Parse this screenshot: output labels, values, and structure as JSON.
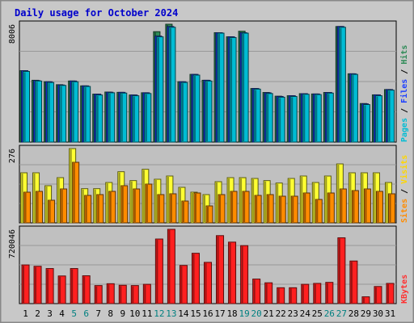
{
  "chart_data": {
    "type": "bar",
    "title": "Daily usage for October 2024",
    "categories": [
      "1",
      "2",
      "3",
      "4",
      "5",
      "6",
      "7",
      "8",
      "9",
      "10",
      "11",
      "12",
      "13",
      "14",
      "15",
      "16",
      "17",
      "18",
      "19",
      "20",
      "21",
      "22",
      "23",
      "24",
      "25",
      "26",
      "27",
      "28",
      "29",
      "30",
      "31"
    ],
    "weekend_days": [
      "5",
      "6",
      "12",
      "13",
      "19",
      "20",
      "26",
      "27"
    ],
    "panels": [
      {
        "id": "hits",
        "max_label": "8006",
        "ylim": [
          0,
          8006
        ],
        "legend": [
          "Pages",
          "Files",
          "Hits"
        ],
        "legend_colors": [
          "#00bcd4",
          "#1e40ff",
          "#2e8b57"
        ],
        "series": [
          {
            "name": "Hits",
            "color": "#2e8b57",
            "values": [
              4850,
              4200,
              4100,
              3900,
              4150,
              3820,
              3260,
              3400,
              3380,
              3200,
              3350,
              7500,
              8006,
              4100,
              4600,
              4200,
              7430,
              7150,
              7530,
              3640,
              3370,
              3120,
              3150,
              3290,
              3270,
              3370,
              7850,
              4640,
              2620,
              3210,
              3570
            ]
          },
          {
            "name": "Files",
            "color": "#1e40ff",
            "values": [
              4850,
              4180,
              4100,
              3880,
              4150,
              3820,
              3260,
              3390,
              3380,
              3200,
              3350,
              7200,
              7850,
              4100,
              4600,
              4200,
              7430,
              7150,
              7430,
              3640,
              3350,
              3100,
              3150,
              3290,
              3270,
              3370,
              7850,
              4640,
              2600,
              3210,
              3570
            ]
          },
          {
            "name": "Pages",
            "color": "#00bcd4",
            "values": [
              4800,
              4150,
              4050,
              3850,
              4100,
              3780,
              3200,
              3350,
              3330,
              3150,
              3300,
              7150,
              7800,
              4050,
              4550,
              4150,
              7400,
              7100,
              7400,
              3600,
              3300,
              3050,
              3100,
              3250,
              3230,
              3330,
              7800,
              4600,
              2550,
              3150,
              3530
            ]
          }
        ]
      },
      {
        "id": "visits",
        "max_label": "276",
        "ylim": [
          0,
          276
        ],
        "legend": [
          "Sites",
          "Visits"
        ],
        "legend_colors": [
          "#ff8c00",
          "#ffd700"
        ],
        "series": [
          {
            "name": "Visits",
            "color": "#ffff33",
            "values": [
              186,
              186,
              138,
              168,
              276,
              127,
              127,
              150,
              190,
              157,
              199,
              162,
              174,
              132,
              114,
              105,
              153,
              168,
              168,
              165,
              157,
              148,
              165,
              174,
              150,
              174,
              219,
              186,
              186,
              186,
              150
            ]
          },
          {
            "name": "Sites",
            "color": "#ff8c00",
            "values": [
              114,
              117,
              84,
              126,
              225,
              102,
              105,
              117,
              138,
              126,
              144,
              105,
              108,
              81,
              111,
              63,
              105,
              117,
              117,
              102,
              105,
              99,
              99,
              111,
              87,
              111,
              126,
              120,
              126,
              117,
              108
            ]
          }
        ]
      },
      {
        "id": "kbytes",
        "max_label": "720046",
        "ylim": [
          0,
          720046
        ],
        "legend": [
          "KBytes"
        ],
        "legend_colors": [
          "#ff3030"
        ],
        "series": [
          {
            "name": "KBytes",
            "color": "#ff2020",
            "values": [
              375000,
              362000,
              340000,
              268000,
              340000,
              270000,
              175000,
              193000,
              178000,
              175000,
              187000,
              626000,
              720046,
              370000,
              488000,
              400000,
              659000,
              596000,
              562000,
              238000,
              202000,
              154000,
              154000,
              187000,
              196000,
              206000,
              638000,
              413000,
              66000,
              166000,
              196000
            ]
          }
        ]
      }
    ]
  }
}
